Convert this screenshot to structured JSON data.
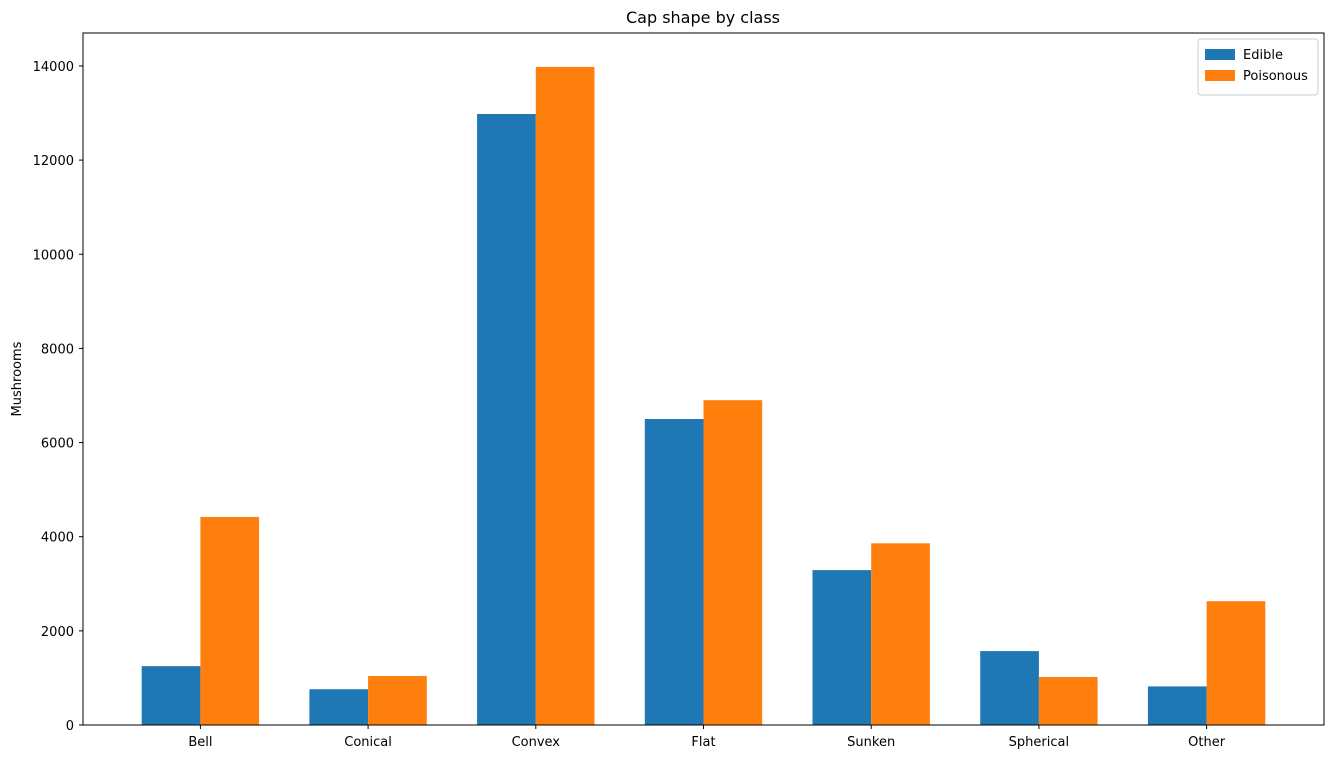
{
  "chart_data": {
    "type": "bar",
    "title": "Cap shape by class",
    "xlabel": "",
    "ylabel": "Mushrooms",
    "categories": [
      "Bell",
      "Conical",
      "Convex",
      "Flat",
      "Sunken",
      "Spherical",
      "Other"
    ],
    "series": [
      {
        "name": "Edible",
        "color": "#1f77b4",
        "values": [
          1250,
          760,
          12980,
          6500,
          3290,
          1570,
          820
        ]
      },
      {
        "name": "Poisonous",
        "color": "#ff7f0e",
        "values": [
          4420,
          1040,
          13980,
          6900,
          3860,
          1020,
          2630
        ]
      }
    ],
    "ylim": [
      0,
      14700
    ],
    "yticks": [
      0,
      2000,
      4000,
      6000,
      8000,
      10000,
      12000,
      14000
    ],
    "ytick_labels": [
      "0",
      "2000",
      "4000",
      "6000",
      "8000",
      "10000",
      "12000",
      "14000"
    ],
    "legend_position": "top-right",
    "grid": false
  }
}
